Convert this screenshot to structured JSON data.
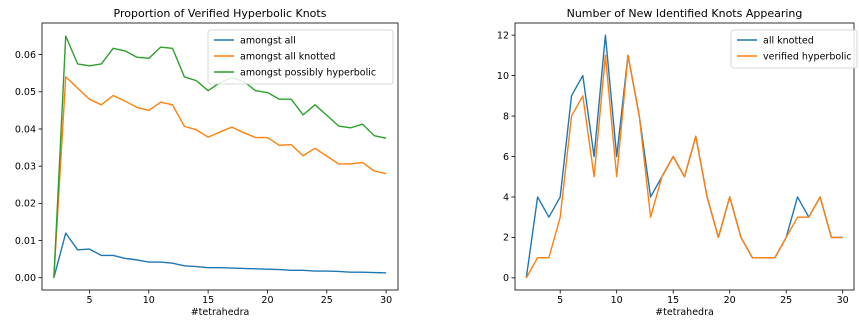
{
  "chart_data": [
    {
      "type": "line",
      "title": "Proportion of Verified Hyperbolic Knots",
      "xlabel": "#tetrahedra",
      "ylabel": "",
      "xlim": [
        1,
        31
      ],
      "ylim": [
        -0.0033,
        0.0685
      ],
      "xticks": [
        5,
        10,
        15,
        20,
        25,
        30
      ],
      "xtick_labels": [
        "5",
        "10",
        "15",
        "20",
        "25",
        "30"
      ],
      "yticks": [
        0,
        0.01,
        0.02,
        0.03,
        0.04,
        0.05,
        0.06
      ],
      "ytick_labels": [
        "0.00",
        "0.01",
        "0.02",
        "0.03",
        "0.04",
        "0.05",
        "0.06"
      ],
      "legend_position": "top-right",
      "x": [
        2,
        3,
        4,
        5,
        6,
        7,
        8,
        9,
        10,
        11,
        12,
        13,
        14,
        15,
        16,
        17,
        18,
        19,
        20,
        21,
        22,
        23,
        24,
        25,
        26,
        27,
        28,
        29,
        30
      ],
      "series": [
        {
          "name": "amongst all",
          "color": "#1f77b4",
          "values": [
            0.0,
            0.012,
            0.0075,
            0.0077,
            0.006,
            0.006,
            0.0052,
            0.0048,
            0.0042,
            0.0042,
            0.0039,
            0.0032,
            0.003,
            0.0027,
            0.0027,
            0.0026,
            0.0025,
            0.0024,
            0.0023,
            0.0022,
            0.002,
            0.002,
            0.0018,
            0.0018,
            0.0017,
            0.0015,
            0.0015,
            0.0014,
            0.0013
          ]
        },
        {
          "name": "amongst all knotted",
          "color": "#ff7f0e",
          "values": [
            0.0,
            0.054,
            0.051,
            0.048,
            0.0465,
            0.049,
            0.0475,
            0.0458,
            0.045,
            0.0472,
            0.0465,
            0.0407,
            0.0398,
            0.0378,
            0.0392,
            0.0405,
            0.039,
            0.0377,
            0.0377,
            0.0356,
            0.0358,
            0.0328,
            0.0348,
            0.0327,
            0.0306,
            0.0306,
            0.031,
            0.0287,
            0.028
          ]
        },
        {
          "name": "amongst possibly hyperbolic",
          "color": "#2ca02c",
          "values": [
            0.0,
            0.065,
            0.0575,
            0.057,
            0.0575,
            0.0617,
            0.061,
            0.0593,
            0.059,
            0.062,
            0.0617,
            0.054,
            0.053,
            0.0503,
            0.0525,
            0.0538,
            0.0528,
            0.0503,
            0.0498,
            0.048,
            0.048,
            0.0438,
            0.0465,
            0.0437,
            0.0408,
            0.0403,
            0.0413,
            0.0382,
            0.0375
          ]
        }
      ]
    },
    {
      "type": "line",
      "title": "Number of New Identified Knots Appearing",
      "xlabel": "#tetrahedra",
      "ylabel": "",
      "xlim": [
        1,
        31
      ],
      "ylim": [
        -0.6,
        12.6
      ],
      "xticks": [
        5,
        10,
        15,
        20,
        25,
        30
      ],
      "xtick_labels": [
        "5",
        "10",
        "15",
        "20",
        "25",
        "30"
      ],
      "yticks": [
        0,
        2,
        4,
        6,
        8,
        10,
        12
      ],
      "ytick_labels": [
        "0",
        "2",
        "4",
        "6",
        "8",
        "10",
        "12"
      ],
      "legend_position": "top-right",
      "x": [
        2,
        3,
        4,
        5,
        6,
        7,
        8,
        9,
        10,
        11,
        12,
        13,
        14,
        15,
        16,
        17,
        18,
        19,
        20,
        21,
        22,
        23,
        24,
        25,
        26,
        27,
        28,
        29,
        30
      ],
      "series": [
        {
          "name": "all knotted",
          "color": "#1f77b4",
          "values": [
            0,
            4,
            3,
            4,
            9,
            10,
            6,
            12,
            6,
            11,
            8,
            4,
            5,
            6,
            5,
            7,
            4,
            2,
            4,
            2,
            1,
            1,
            1,
            2,
            4,
            3,
            4,
            2,
            2
          ]
        },
        {
          "name": "verified hyperbolic",
          "color": "#ff7f0e",
          "values": [
            0,
            1,
            1,
            3,
            8,
            9,
            5,
            11,
            5,
            11,
            8,
            3,
            5,
            6,
            5,
            7,
            4,
            2,
            4,
            2,
            1,
            1,
            1,
            2,
            3,
            3,
            4,
            2,
            2
          ]
        }
      ]
    }
  ]
}
